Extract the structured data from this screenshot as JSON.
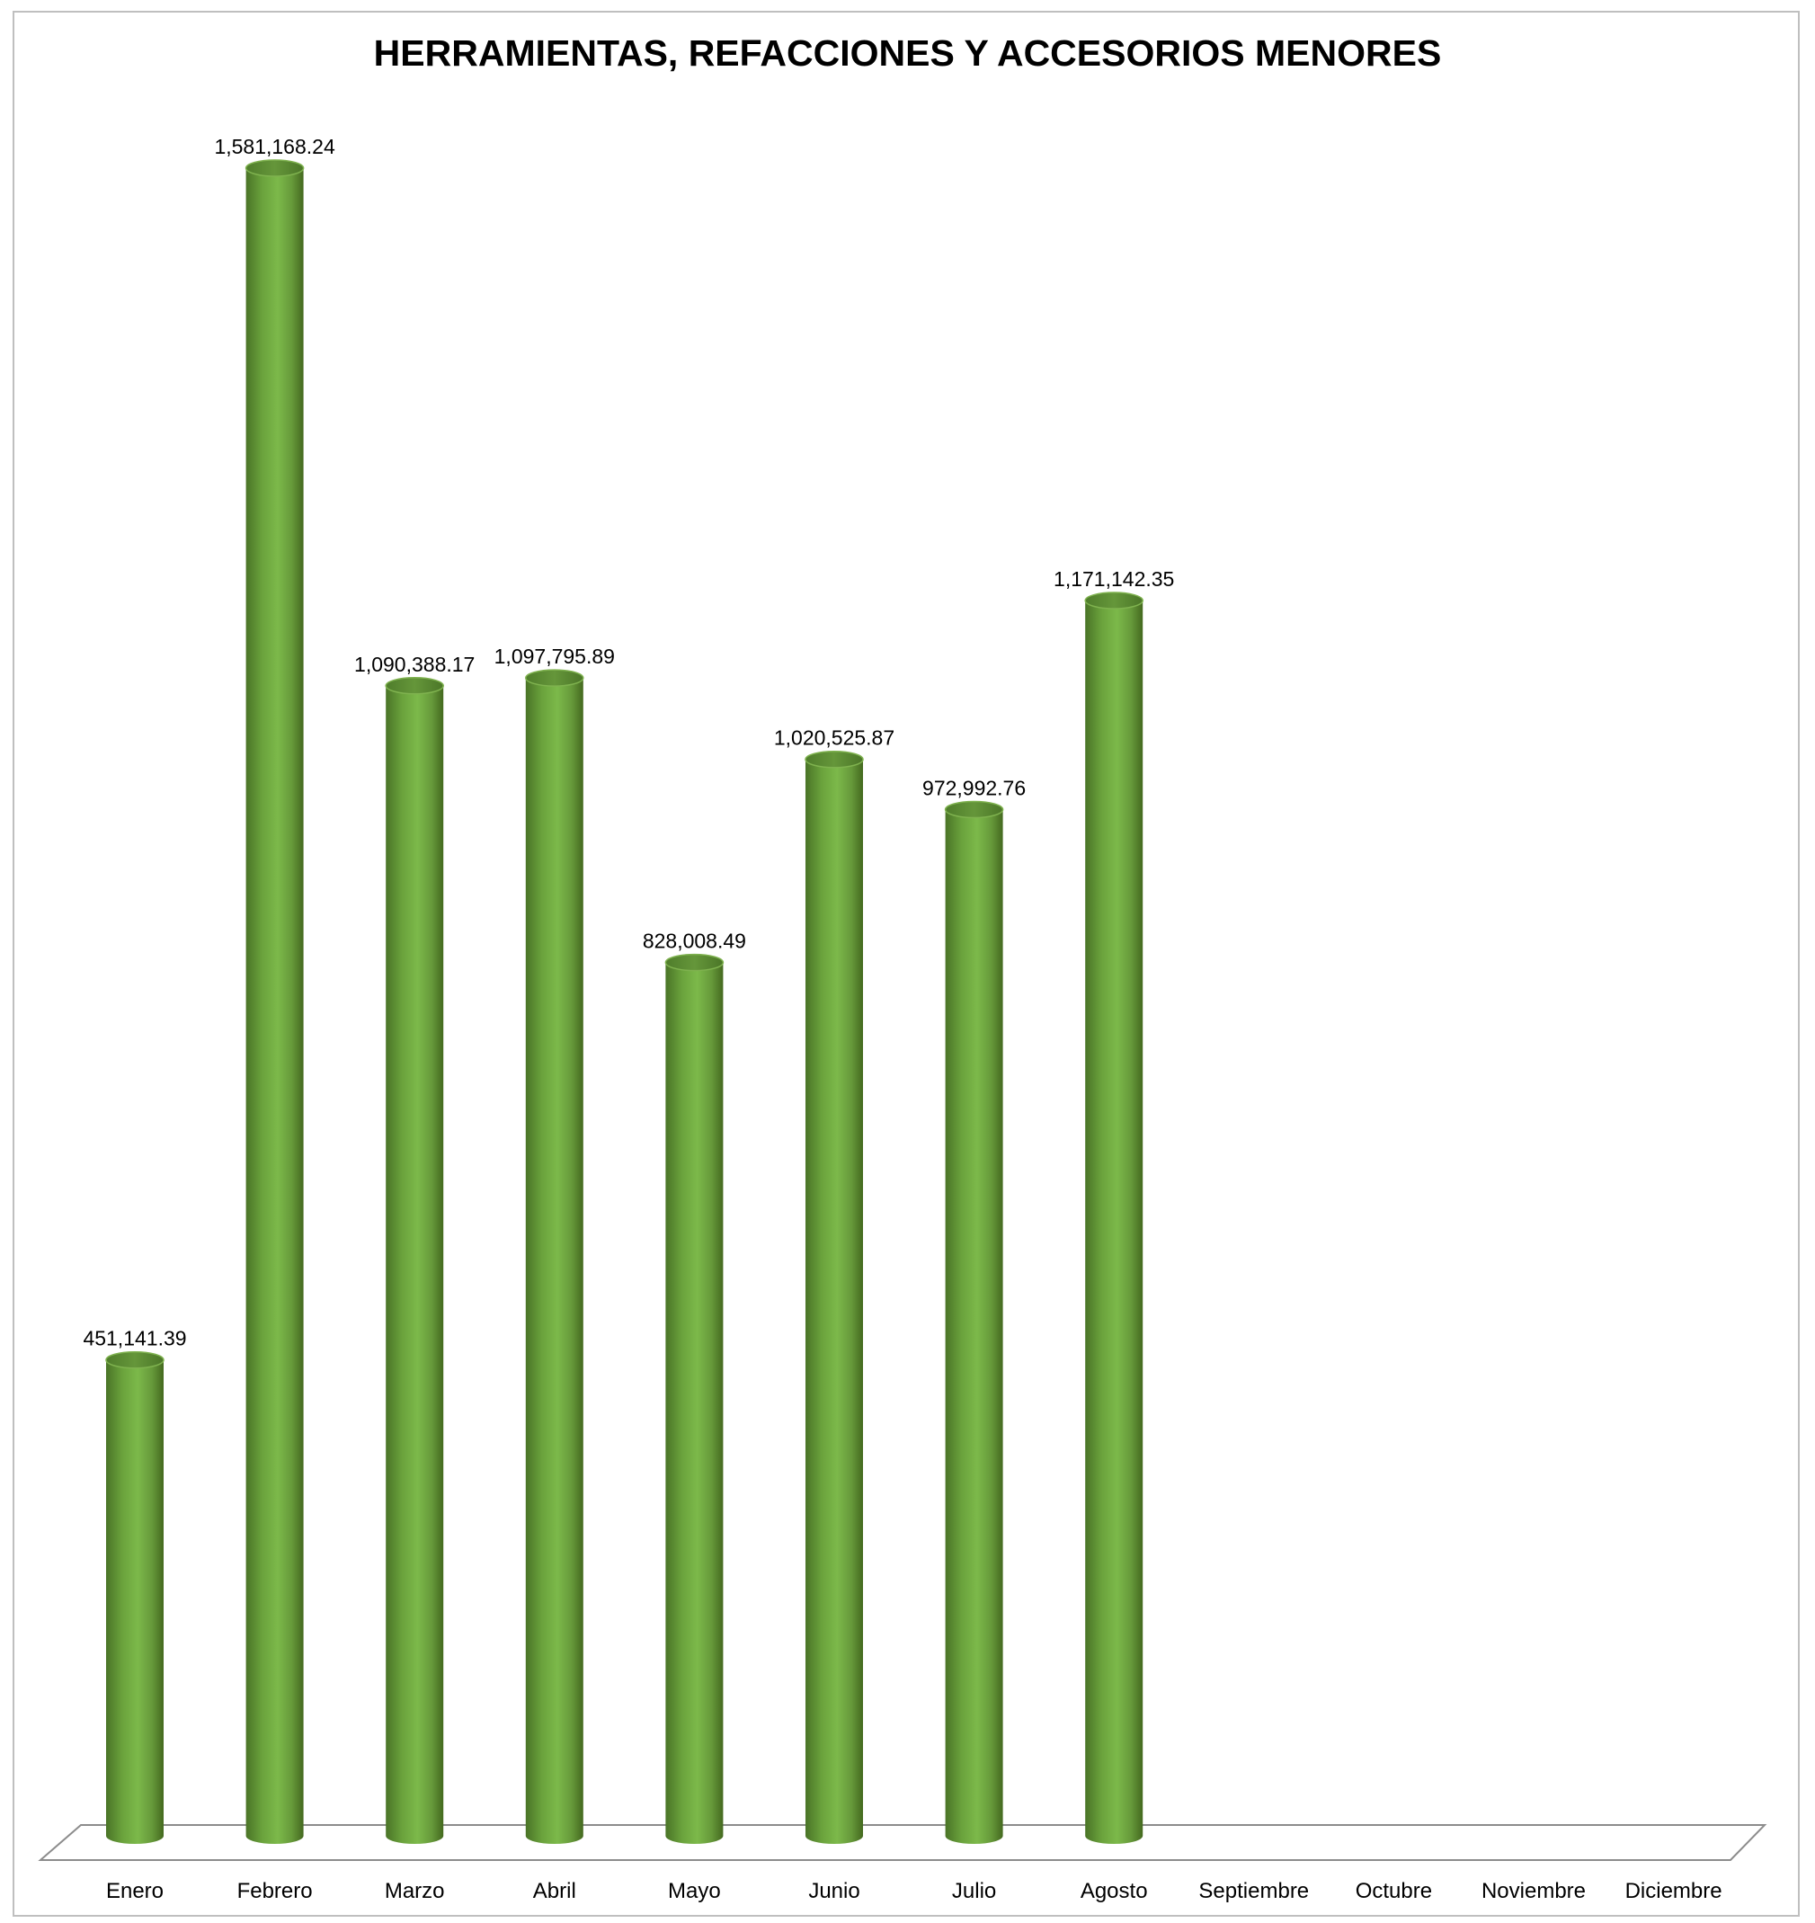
{
  "chart_data": {
    "type": "bar",
    "style": "3d-cylinder",
    "title": "HERRAMIENTAS, REFACCIONES Y ACCESORIOS MENORES",
    "xlabel": "",
    "ylabel": "",
    "categories": [
      "Enero",
      "Febrero",
      "Marzo",
      "Abril",
      "Mayo",
      "Junio",
      "Julio",
      "Agosto",
      "Septiembre",
      "Octubre",
      "Noviembre",
      "Diciembre"
    ],
    "values": [
      451141.39,
      1581168.24,
      1090388.17,
      1097795.89,
      828008.49,
      1020525.87,
      972992.76,
      1171142.35,
      null,
      null,
      null,
      null
    ],
    "value_labels": [
      "451,141.39",
      "1,581,168.24",
      "1,090,388.17",
      "1,097,795.89",
      "828,008.49",
      "1,020,525.87",
      "972,992.76",
      "1,171,142.35",
      "",
      "",
      "",
      ""
    ],
    "ylim": [
      0,
      1581168.24
    ],
    "grid": false,
    "legend": "none",
    "colors": {
      "bar_light": "#7ab648",
      "bar_dark": "#4e7a2a",
      "bar_top": "#5c8f33",
      "floor_line": "#7f7f7f",
      "frame": "#bfbfbf"
    }
  }
}
